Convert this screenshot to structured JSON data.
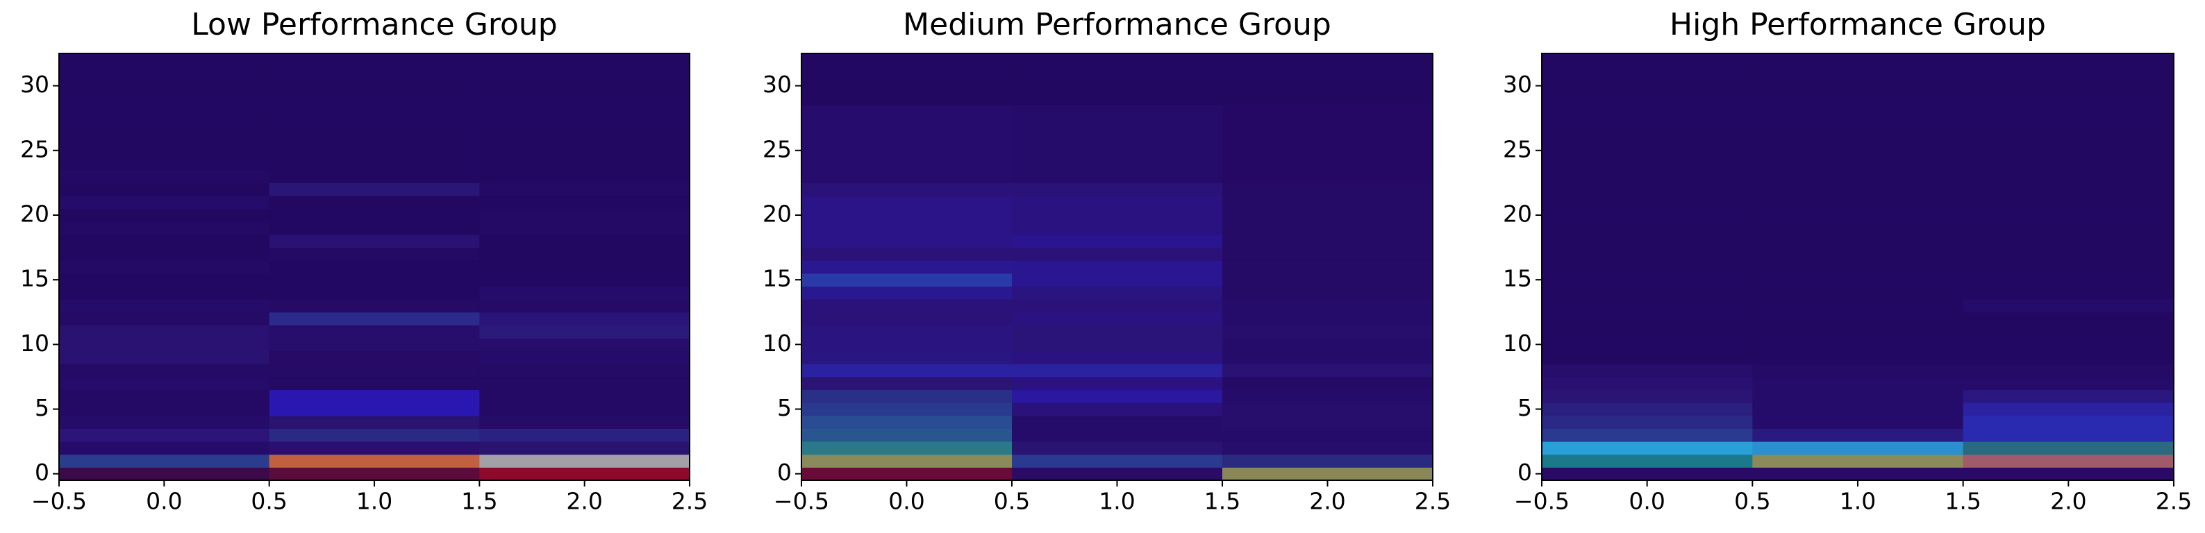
{
  "chart_data": [
    {
      "type": "heatmap",
      "title": "Low Performance Group",
      "xlim": [
        -0.5,
        2.5
      ],
      "ylim": [
        -0.5,
        32.5
      ],
      "xticks": [
        {
          "value": -0.5,
          "label": "−0.5"
        },
        {
          "value": 0,
          "label": "0.0"
        },
        {
          "value": 0.5,
          "label": "0.5"
        },
        {
          "value": 1,
          "label": "1.0"
        },
        {
          "value": 1.5,
          "label": "1.5"
        },
        {
          "value": 2,
          "label": "2.0"
        },
        {
          "value": 2.5,
          "label": "2.5"
        }
      ],
      "yticks": [
        0,
        5,
        10,
        15,
        20,
        25,
        30
      ],
      "cell_colors": [
        [
          "#3c0a48",
          "#5c0c3c",
          "#8c0a2c"
        ],
        [
          "#2a3c8e",
          "#c0603e",
          "#a4a0a8"
        ],
        [
          "#260c6a",
          "#2a0f70",
          "#2a1470"
        ],
        [
          "#2c1478",
          "#2a2a84",
          "#2a2280"
        ],
        [
          "#260c6a",
          "#2a1472",
          "#250c66"
        ],
        [
          "#240a64",
          "#2a16b0",
          "#240a64"
        ],
        [
          "#240a64",
          "#2a16b0",
          "#240a64"
        ],
        [
          "#260c6a",
          "#240a64",
          "#240a64"
        ],
        [
          "#250a66",
          "#250a66",
          "#250a66"
        ],
        [
          "#2a1272",
          "#260a66",
          "#260c6a"
        ],
        [
          "#2a1272",
          "#280e6c",
          "#280e6c"
        ],
        [
          "#2a1272",
          "#280e6c",
          "#2c1a7a"
        ],
        [
          "#250a66",
          "#2c2a8a",
          "#2a147a"
        ],
        [
          "#260c6a",
          "#250a66",
          "#250a66"
        ],
        [
          "#230862",
          "#230862",
          "#260c6a"
        ],
        [
          "#230862",
          "#230862",
          "#230862"
        ],
        [
          "#240a64",
          "#230862",
          "#230862"
        ],
        [
          "#230862",
          "#240a64",
          "#230862"
        ],
        [
          "#230862",
          "#2a1274",
          "#230862"
        ],
        [
          "#240a64",
          "#230862",
          "#240a64"
        ],
        [
          "#230862",
          "#230862",
          "#240a64"
        ],
        [
          "#260c6a",
          "#230862",
          "#230862"
        ],
        [
          "#230862",
          "#2a1676",
          "#240a64"
        ],
        [
          "#240a64",
          "#230862",
          "#230862"
        ],
        [
          "#230862",
          "#230862",
          "#230862"
        ],
        [
          "#230862",
          "#230862",
          "#230862"
        ],
        [
          "#230862",
          "#230862",
          "#230862"
        ],
        [
          "#230862",
          "#230862",
          "#230862"
        ],
        [
          "#230862",
          "#230862",
          "#230862"
        ],
        [
          "#230862",
          "#230862",
          "#230862"
        ],
        [
          "#230862",
          "#230862",
          "#230862"
        ],
        [
          "#230862",
          "#230862",
          "#230862"
        ],
        [
          "#230862",
          "#230862",
          "#230862"
        ]
      ]
    },
    {
      "type": "heatmap",
      "title": "Medium Performance Group",
      "xlim": [
        -0.5,
        2.5
      ],
      "ylim": [
        -0.5,
        32.5
      ],
      "xticks": [
        {
          "value": -0.5,
          "label": "−0.5"
        },
        {
          "value": 0,
          "label": "0.0"
        },
        {
          "value": 0.5,
          "label": "0.5"
        },
        {
          "value": 1,
          "label": "1.0"
        },
        {
          "value": 1.5,
          "label": "1.5"
        },
        {
          "value": 2,
          "label": "2.0"
        },
        {
          "value": 2.5,
          "label": "2.5"
        }
      ],
      "yticks": [
        0,
        5,
        10,
        15,
        20,
        25,
        30
      ],
      "cell_colors": [
        [
          "#6a0a38",
          "#2a0c66",
          "#8a8858"
        ],
        [
          "#8a8a5a",
          "#2a3a90",
          "#2a2a80"
        ],
        [
          "#2a7a8a",
          "#2a1472",
          "#280e6c"
        ],
        [
          "#2a5690",
          "#260c6a",
          "#260c6a"
        ],
        [
          "#2a4c92",
          "#260c6a",
          "#280e6c"
        ],
        [
          "#2a3a8e",
          "#2a127a",
          "#280e6c"
        ],
        [
          "#2a3088",
          "#2a18a0",
          "#260c6a"
        ],
        [
          "#2a1474",
          "#2a1280",
          "#250a66"
        ],
        [
          "#2a22a0",
          "#2a22a0",
          "#2a1274"
        ],
        [
          "#2a1680",
          "#2a1280",
          "#260c6a"
        ],
        [
          "#2a1480",
          "#2a1478",
          "#260c6a"
        ],
        [
          "#2a1480",
          "#2a1478",
          "#280e6c"
        ],
        [
          "#2a1278",
          "#2a1280",
          "#260c6a"
        ],
        [
          "#2a127a",
          "#2a127a",
          "#260c6a"
        ],
        [
          "#2a1890",
          "#2a1480",
          "#250a66"
        ],
        [
          "#2a3aa8",
          "#2a1690",
          "#250a66"
        ],
        [
          "#2a1890",
          "#2a1690",
          "#250a66"
        ],
        [
          "#2a1278",
          "#2a1278",
          "#250a66"
        ],
        [
          "#2a1488",
          "#2a1490",
          "#250a66"
        ],
        [
          "#2a1488",
          "#2a1280",
          "#250a66"
        ],
        [
          "#2a1488",
          "#2a1280",
          "#250a66"
        ],
        [
          "#2a1488",
          "#2a1280",
          "#250a66"
        ],
        [
          "#2a1278",
          "#2a1278",
          "#250a66"
        ],
        [
          "#260c6c",
          "#260c6a",
          "#240864"
        ],
        [
          "#260c6c",
          "#260c6a",
          "#240864"
        ],
        [
          "#260c6c",
          "#260c6a",
          "#240864"
        ],
        [
          "#260c6c",
          "#260c6a",
          "#240864"
        ],
        [
          "#260c6c",
          "#260c6a",
          "#240864"
        ],
        [
          "#260c6c",
          "#260c6a",
          "#240864"
        ],
        [
          "#230862",
          "#230862",
          "#230862"
        ],
        [
          "#230862",
          "#230862",
          "#230862"
        ],
        [
          "#230862",
          "#230862",
          "#230862"
        ],
        [
          "#230862",
          "#230862",
          "#230862"
        ]
      ]
    },
    {
      "type": "heatmap",
      "title": "High Performance Group",
      "xlim": [
        -0.5,
        2.5
      ],
      "ylim": [
        -0.5,
        32.5
      ],
      "xticks": [
        {
          "value": -0.5,
          "label": "−0.5"
        },
        {
          "value": 0,
          "label": "0.0"
        },
        {
          "value": 0.5,
          "label": "0.5"
        },
        {
          "value": 1,
          "label": "1.0"
        },
        {
          "value": 1.5,
          "label": "1.5"
        },
        {
          "value": 2,
          "label": "2.0"
        },
        {
          "value": 2.5,
          "label": "2.5"
        }
      ],
      "yticks": [
        0,
        5,
        10,
        15,
        20,
        25,
        30
      ],
      "cell_colors": [
        [
          "#2a0a66",
          "#2a0a66",
          "#2a0a66"
        ],
        [
          "#1a7a8a",
          "#8a8a5a",
          "#a05a6a"
        ],
        [
          "#2aa0d8",
          "#2a90d0",
          "#2a6a80"
        ],
        [
          "#2a3a8e",
          "#2a1a80",
          "#2a2ab0"
        ],
        [
          "#2a2a86",
          "#260c6a",
          "#2a2ab0"
        ],
        [
          "#2a2080",
          "#260c6a",
          "#2a22a0"
        ],
        [
          "#2a1474",
          "#260c6a",
          "#2a1880"
        ],
        [
          "#2a1070",
          "#260c6a",
          "#260c6a"
        ],
        [
          "#280e6c",
          "#250a66",
          "#250a66"
        ],
        [
          "#230862",
          "#230862",
          "#230862"
        ],
        [
          "#230862",
          "#230862",
          "#230862"
        ],
        [
          "#230862",
          "#230862",
          "#230862"
        ],
        [
          "#230862",
          "#230862",
          "#230862"
        ],
        [
          "#230862",
          "#230862",
          "#260c6a"
        ],
        [
          "#230862",
          "#230862",
          "#230862"
        ],
        [
          "#230862",
          "#230862",
          "#230862"
        ],
        [
          "#230862",
          "#230862",
          "#230862"
        ],
        [
          "#230862",
          "#230862",
          "#230862"
        ],
        [
          "#230862",
          "#230862",
          "#230862"
        ],
        [
          "#230862",
          "#230862",
          "#230862"
        ],
        [
          "#230862",
          "#230862",
          "#230862"
        ],
        [
          "#230862",
          "#230862",
          "#230862"
        ],
        [
          "#230862",
          "#230862",
          "#230862"
        ],
        [
          "#230862",
          "#230862",
          "#230862"
        ],
        [
          "#230862",
          "#230862",
          "#230862"
        ],
        [
          "#230862",
          "#230862",
          "#230862"
        ],
        [
          "#230862",
          "#230862",
          "#230862"
        ],
        [
          "#230862",
          "#230862",
          "#230862"
        ],
        [
          "#230862",
          "#230862",
          "#230862"
        ],
        [
          "#230862",
          "#230862",
          "#230862"
        ],
        [
          "#230862",
          "#230862",
          "#230862"
        ],
        [
          "#230862",
          "#230862",
          "#230862"
        ],
        [
          "#230862",
          "#230862",
          "#230862"
        ]
      ]
    }
  ]
}
